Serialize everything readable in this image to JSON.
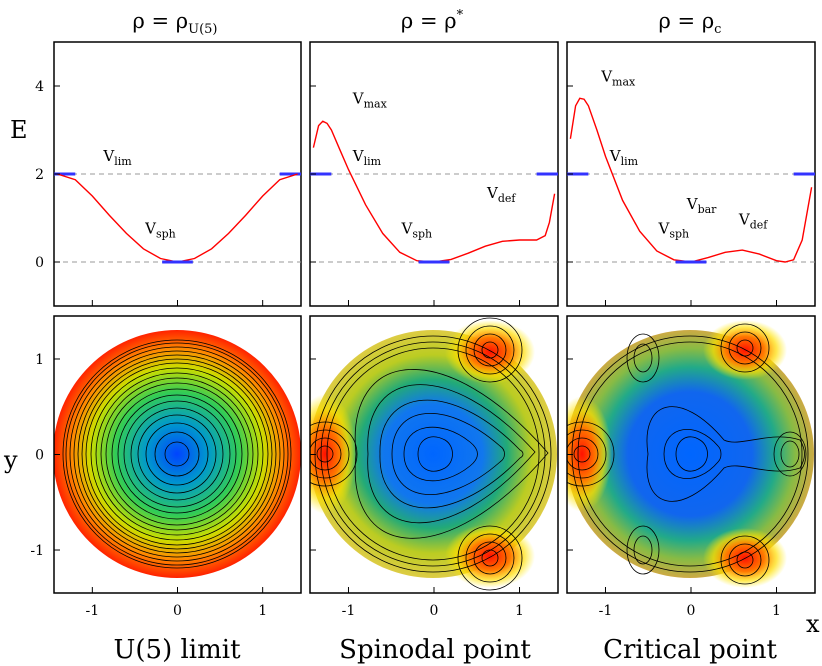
{
  "figure": {
    "top_titles": [
      "ρ = ρU(5)",
      "ρ = ρ*",
      "ρ = ρc"
    ],
    "bottom_labels": [
      "U(5) limit",
      "Spinodal point",
      "Critical point"
    ],
    "y_label_top": "E",
    "y_label_bottom": "y",
    "x_label": "x"
  },
  "chart_data": [
    {
      "type": "line",
      "panel": "top-left",
      "title": "ρ = ρU(5)",
      "xlabel": "",
      "ylabel": "E",
      "xlim": [
        -1.45,
        1.45
      ],
      "ylim": [
        -1,
        5
      ],
      "x_ticks": [
        -1,
        0,
        1
      ],
      "y_ticks": [
        0,
        2,
        4
      ],
      "reference_lines": [
        0,
        2
      ],
      "series": [
        {
          "color": "#ff0000",
          "x": [
            -1.41,
            -1.2,
            -1.0,
            -0.8,
            -0.6,
            -0.4,
            -0.2,
            0.0,
            0.2,
            0.4,
            0.6,
            0.8,
            1.0,
            1.2,
            1.41
          ],
          "y": [
            2.0,
            1.87,
            1.5,
            1.06,
            0.65,
            0.3,
            0.08,
            0.0,
            0.08,
            0.3,
            0.65,
            1.06,
            1.5,
            1.87,
            2.0
          ]
        }
      ],
      "annotations": [
        {
          "label": "V",
          "sub": "lim",
          "x": -0.87,
          "y": 2.3
        },
        {
          "label": "V",
          "sub": "sph",
          "x": -0.38,
          "y": 0.65
        }
      ]
    },
    {
      "type": "line",
      "panel": "top-middle",
      "title": "ρ = ρ*",
      "xlabel": "",
      "ylabel": "",
      "xlim": [
        -1.45,
        1.45
      ],
      "ylim": [
        -1,
        5
      ],
      "x_ticks": [
        -1,
        0,
        1
      ],
      "y_ticks": [
        0,
        2,
        4
      ],
      "reference_lines": [
        0,
        2
      ],
      "series": [
        {
          "color": "#ff0000",
          "x": [
            -1.41,
            -1.35,
            -1.3,
            -1.25,
            -1.2,
            -1.1,
            -1.0,
            -0.8,
            -0.6,
            -0.4,
            -0.2,
            0.0,
            0.2,
            0.4,
            0.6,
            0.8,
            1.0,
            1.2,
            1.3,
            1.35,
            1.41
          ],
          "y": [
            2.6,
            3.1,
            3.2,
            3.15,
            3.0,
            2.55,
            2.1,
            1.3,
            0.65,
            0.22,
            0.03,
            0.0,
            0.06,
            0.2,
            0.36,
            0.47,
            0.5,
            0.5,
            0.6,
            0.9,
            1.55
          ]
        }
      ],
      "annotations": [
        {
          "label": "V",
          "sub": "max",
          "x": -0.95,
          "y": 3.6
        },
        {
          "label": "V",
          "sub": "lim",
          "x": -0.95,
          "y": 2.3
        },
        {
          "label": "V",
          "sub": "sph",
          "x": -0.38,
          "y": 0.65
        },
        {
          "label": "V",
          "sub": "def",
          "x": 0.62,
          "y": 1.45
        }
      ]
    },
    {
      "type": "line",
      "panel": "top-right",
      "title": "ρ = ρc",
      "xlabel": "",
      "ylabel": "",
      "xlim": [
        -1.45,
        1.45
      ],
      "ylim": [
        -1,
        5
      ],
      "x_ticks": [
        -1,
        0,
        1
      ],
      "y_ticks": [
        0,
        2,
        4
      ],
      "reference_lines": [
        0,
        2
      ],
      "series": [
        {
          "color": "#ff0000",
          "x": [
            -1.41,
            -1.35,
            -1.3,
            -1.25,
            -1.2,
            -1.1,
            -1.0,
            -0.8,
            -0.6,
            -0.4,
            -0.2,
            0.0,
            0.2,
            0.4,
            0.6,
            0.8,
            1.0,
            1.1,
            1.2,
            1.3,
            1.41
          ],
          "y": [
            2.8,
            3.55,
            3.72,
            3.7,
            3.55,
            3.0,
            2.4,
            1.4,
            0.7,
            0.25,
            0.05,
            0.0,
            0.1,
            0.22,
            0.27,
            0.18,
            0.03,
            0.0,
            0.05,
            0.5,
            1.7
          ]
        }
      ],
      "annotations": [
        {
          "label": "V",
          "sub": "max",
          "x": -1.05,
          "y": 4.1
        },
        {
          "label": "V",
          "sub": "lim",
          "x": -0.95,
          "y": 2.3
        },
        {
          "label": "V",
          "sub": "sph",
          "x": -0.38,
          "y": 0.65
        },
        {
          "label": "V",
          "sub": "bar",
          "x": -0.05,
          "y": 1.2
        },
        {
          "label": "V",
          "sub": "def",
          "x": 0.56,
          "y": 0.85
        }
      ]
    },
    {
      "type": "heatmap",
      "panel": "bottom-left",
      "xlabel": "",
      "ylabel": "y",
      "xlim": [
        -1.45,
        1.45
      ],
      "ylim": [
        -1.45,
        1.45
      ],
      "x_ticks": [
        -1,
        0,
        1
      ],
      "y_ticks": [
        -1,
        0,
        1
      ],
      "colormap": [
        "#0055ff",
        "#00cc66",
        "#ffee00",
        "#ff2200"
      ],
      "minima": [
        [
          0,
          0
        ]
      ]
    },
    {
      "type": "heatmap",
      "panel": "bottom-middle",
      "xlabel": "",
      "ylabel": "",
      "xlim": [
        -1.45,
        1.45
      ],
      "ylim": [
        -1.45,
        1.45
      ],
      "x_ticks": [
        -1,
        0,
        1
      ],
      "y_ticks": [
        -1,
        0,
        1
      ],
      "colormap": [
        "#0055ff",
        "#00cc66",
        "#ffee00",
        "#ff2200"
      ],
      "minima": [
        [
          0,
          0
        ]
      ],
      "maxima": [
        [
          -1.3,
          0
        ],
        [
          0.65,
          1.15
        ],
        [
          0.65,
          -1.15
        ]
      ]
    },
    {
      "type": "heatmap",
      "panel": "bottom-right",
      "xlabel": "x",
      "ylabel": "",
      "xlim": [
        -1.45,
        1.45
      ],
      "ylim": [
        -1.45,
        1.45
      ],
      "x_ticks": [
        -1,
        0,
        1
      ],
      "y_ticks": [
        -1,
        0,
        1
      ],
      "colormap": [
        "#0055ff",
        "#00cc66",
        "#ffee00",
        "#ff2200"
      ],
      "minima": [
        [
          0,
          0
        ],
        [
          1.1,
          0
        ],
        [
          -0.55,
          0.95
        ],
        [
          -0.55,
          -0.95
        ]
      ],
      "maxima": [
        [
          -1.3,
          0
        ],
        [
          0.6,
          1.2
        ],
        [
          0.6,
          -1.2
        ]
      ]
    }
  ]
}
